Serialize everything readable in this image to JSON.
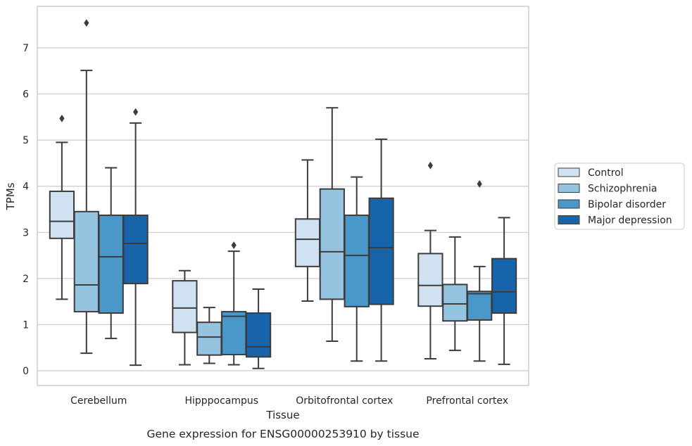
{
  "caption": "Gene expression for ENSG00000253910 by tissue",
  "chart_data": {
    "type": "box",
    "xlabel": "Tissue",
    "ylabel": "TPMs",
    "ylim": [
      -0.32,
      7.9
    ],
    "yticks": [
      0,
      1,
      2,
      3,
      4,
      5,
      6,
      7
    ],
    "grid": "horizontal",
    "legend_position": "right",
    "categories": [
      "Cerebellum",
      "Hipppocampus",
      "Orbitofrontal cortex",
      "Prefrontal cortex"
    ],
    "series": [
      {
        "name": "Control",
        "color": "#d0e1f2",
        "boxes": [
          {
            "whislo": 1.55,
            "q1": 2.87,
            "med": 3.24,
            "q3": 3.89,
            "whishi": 4.95,
            "fliers": [
              5.47
            ]
          },
          {
            "whislo": 0.13,
            "q1": 0.83,
            "med": 1.36,
            "q3": 1.95,
            "whishi": 2.17,
            "fliers": []
          },
          {
            "whislo": 1.51,
            "q1": 2.26,
            "med": 2.85,
            "q3": 3.29,
            "whishi": 4.57,
            "fliers": []
          },
          {
            "whislo": 0.26,
            "q1": 1.4,
            "med": 1.85,
            "q3": 2.54,
            "whishi": 3.04,
            "fliers": [
              4.45
            ]
          }
        ]
      },
      {
        "name": "Schizophrenia",
        "color": "#94c4df",
        "boxes": [
          {
            "whislo": 0.38,
            "q1": 1.28,
            "med": 1.86,
            "q3": 3.45,
            "whishi": 6.51,
            "fliers": [
              7.54
            ]
          },
          {
            "whislo": 0.16,
            "q1": 0.34,
            "med": 0.73,
            "q3": 1.05,
            "whishi": 1.37,
            "fliers": []
          },
          {
            "whislo": 0.64,
            "q1": 1.55,
            "med": 2.58,
            "q3": 3.94,
            "whishi": 5.7,
            "fliers": []
          },
          {
            "whislo": 0.44,
            "q1": 1.08,
            "med": 1.45,
            "q3": 1.87,
            "whishi": 2.9,
            "fliers": []
          }
        ]
      },
      {
        "name": "Bipolar disorder",
        "color": "#4a98c9",
        "boxes": [
          {
            "whislo": 0.7,
            "q1": 1.25,
            "med": 2.47,
            "q3": 3.37,
            "whishi": 4.4,
            "fliers": []
          },
          {
            "whislo": 0.13,
            "q1": 0.35,
            "med": 1.18,
            "q3": 1.28,
            "whishi": 2.59,
            "fliers": [
              2.72
            ]
          },
          {
            "whislo": 0.21,
            "q1": 1.39,
            "med": 2.5,
            "q3": 3.37,
            "whishi": 4.2,
            "fliers": []
          },
          {
            "whislo": 0.21,
            "q1": 1.1,
            "med": 1.67,
            "q3": 1.72,
            "whishi": 2.26,
            "fliers": [
              4.05
            ]
          }
        ]
      },
      {
        "name": "Major depression",
        "color": "#1764ab",
        "boxes": [
          {
            "whislo": 0.12,
            "q1": 1.89,
            "med": 2.76,
            "q3": 3.37,
            "whishi": 5.37,
            "fliers": [
              5.61
            ]
          },
          {
            "whislo": 0.05,
            "q1": 0.3,
            "med": 0.52,
            "q3": 1.25,
            "whishi": 1.77,
            "fliers": []
          },
          {
            "whislo": 0.21,
            "q1": 1.44,
            "med": 2.67,
            "q3": 3.74,
            "whishi": 5.02,
            "fliers": []
          },
          {
            "whislo": 0.14,
            "q1": 1.25,
            "med": 1.71,
            "q3": 2.43,
            "whishi": 3.32,
            "fliers": []
          }
        ]
      }
    ]
  }
}
